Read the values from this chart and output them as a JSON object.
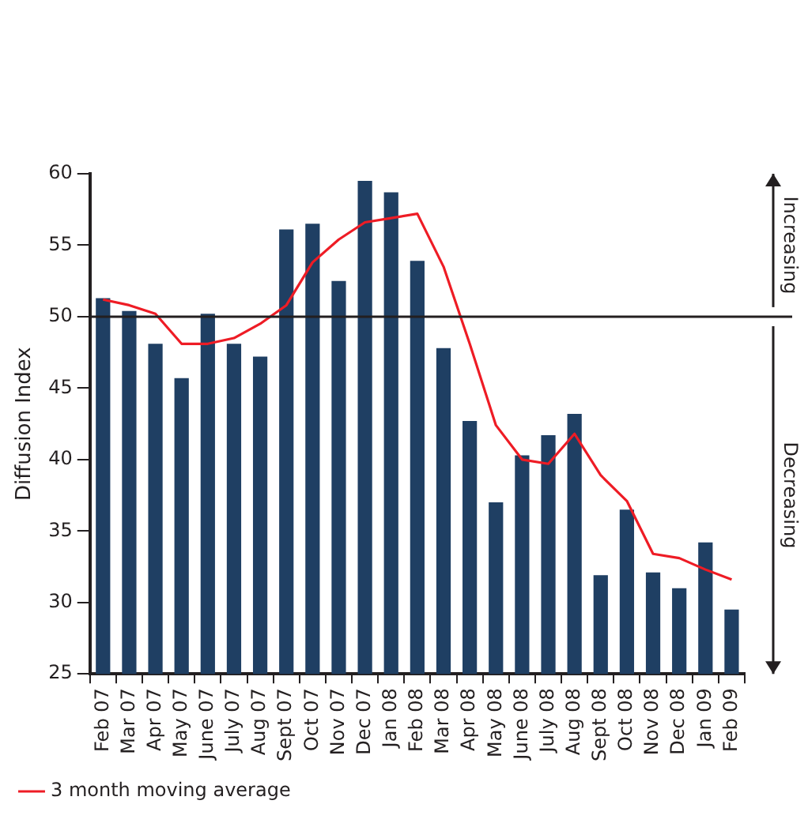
{
  "chart_data": {
    "type": "bar",
    "ylabel": "Diffusion Index",
    "categories": [
      "Feb 07",
      "Mar 07",
      "Apr 07",
      "May 07",
      "June 07",
      "July 07",
      "Aug 07",
      "Sept 07",
      "Oct 07",
      "Nov 07",
      "Dec 07",
      "Jan 08",
      "Feb 08",
      "Mar 08",
      "Apr 08",
      "May 08",
      "June 08",
      "July 08",
      "Aug 08",
      "Sept 08",
      "Oct 08",
      "Nov 08",
      "Dec 08",
      "Jan 09",
      "Feb 09"
    ],
    "series": [
      {
        "color": "#1f3f63",
        "values": [
          51.3,
          50.4,
          48.1,
          45.7,
          50.2,
          48.1,
          47.2,
          56.1,
          56.5,
          52.5,
          59.5,
          58.7,
          53.9,
          47.8,
          42.7,
          37.0,
          40.3,
          41.7,
          43.2,
          31.9,
          36.5,
          32.1,
          31.0,
          34.2,
          29.5
        ]
      },
      {
        "type": "line",
        "name": "3 month moving average",
        "color": "#ee1c25",
        "values": [
          51.2,
          50.8,
          50.2,
          48.1,
          48.1,
          48.5,
          49.5,
          50.8,
          53.8,
          55.4,
          56.6,
          56.9,
          57.2,
          53.5,
          48.1,
          42.4,
          40.0,
          39.7,
          41.8,
          38.9,
          37.1,
          33.4,
          33.1,
          32.3,
          31.6
        ]
      }
    ],
    "ylim": [
      25,
      60
    ],
    "yticks": [
      25,
      30,
      35,
      40,
      45,
      50,
      55,
      60
    ],
    "grid": false,
    "legend": "bottom",
    "marker": "none",
    "line_style": "solid",
    "ref_lines": [
      {
        "axis": "y",
        "value": 50,
        "color": "#231f20"
      }
    ],
    "annotations": [
      "Increasing",
      "Decreasing"
    ]
  }
}
